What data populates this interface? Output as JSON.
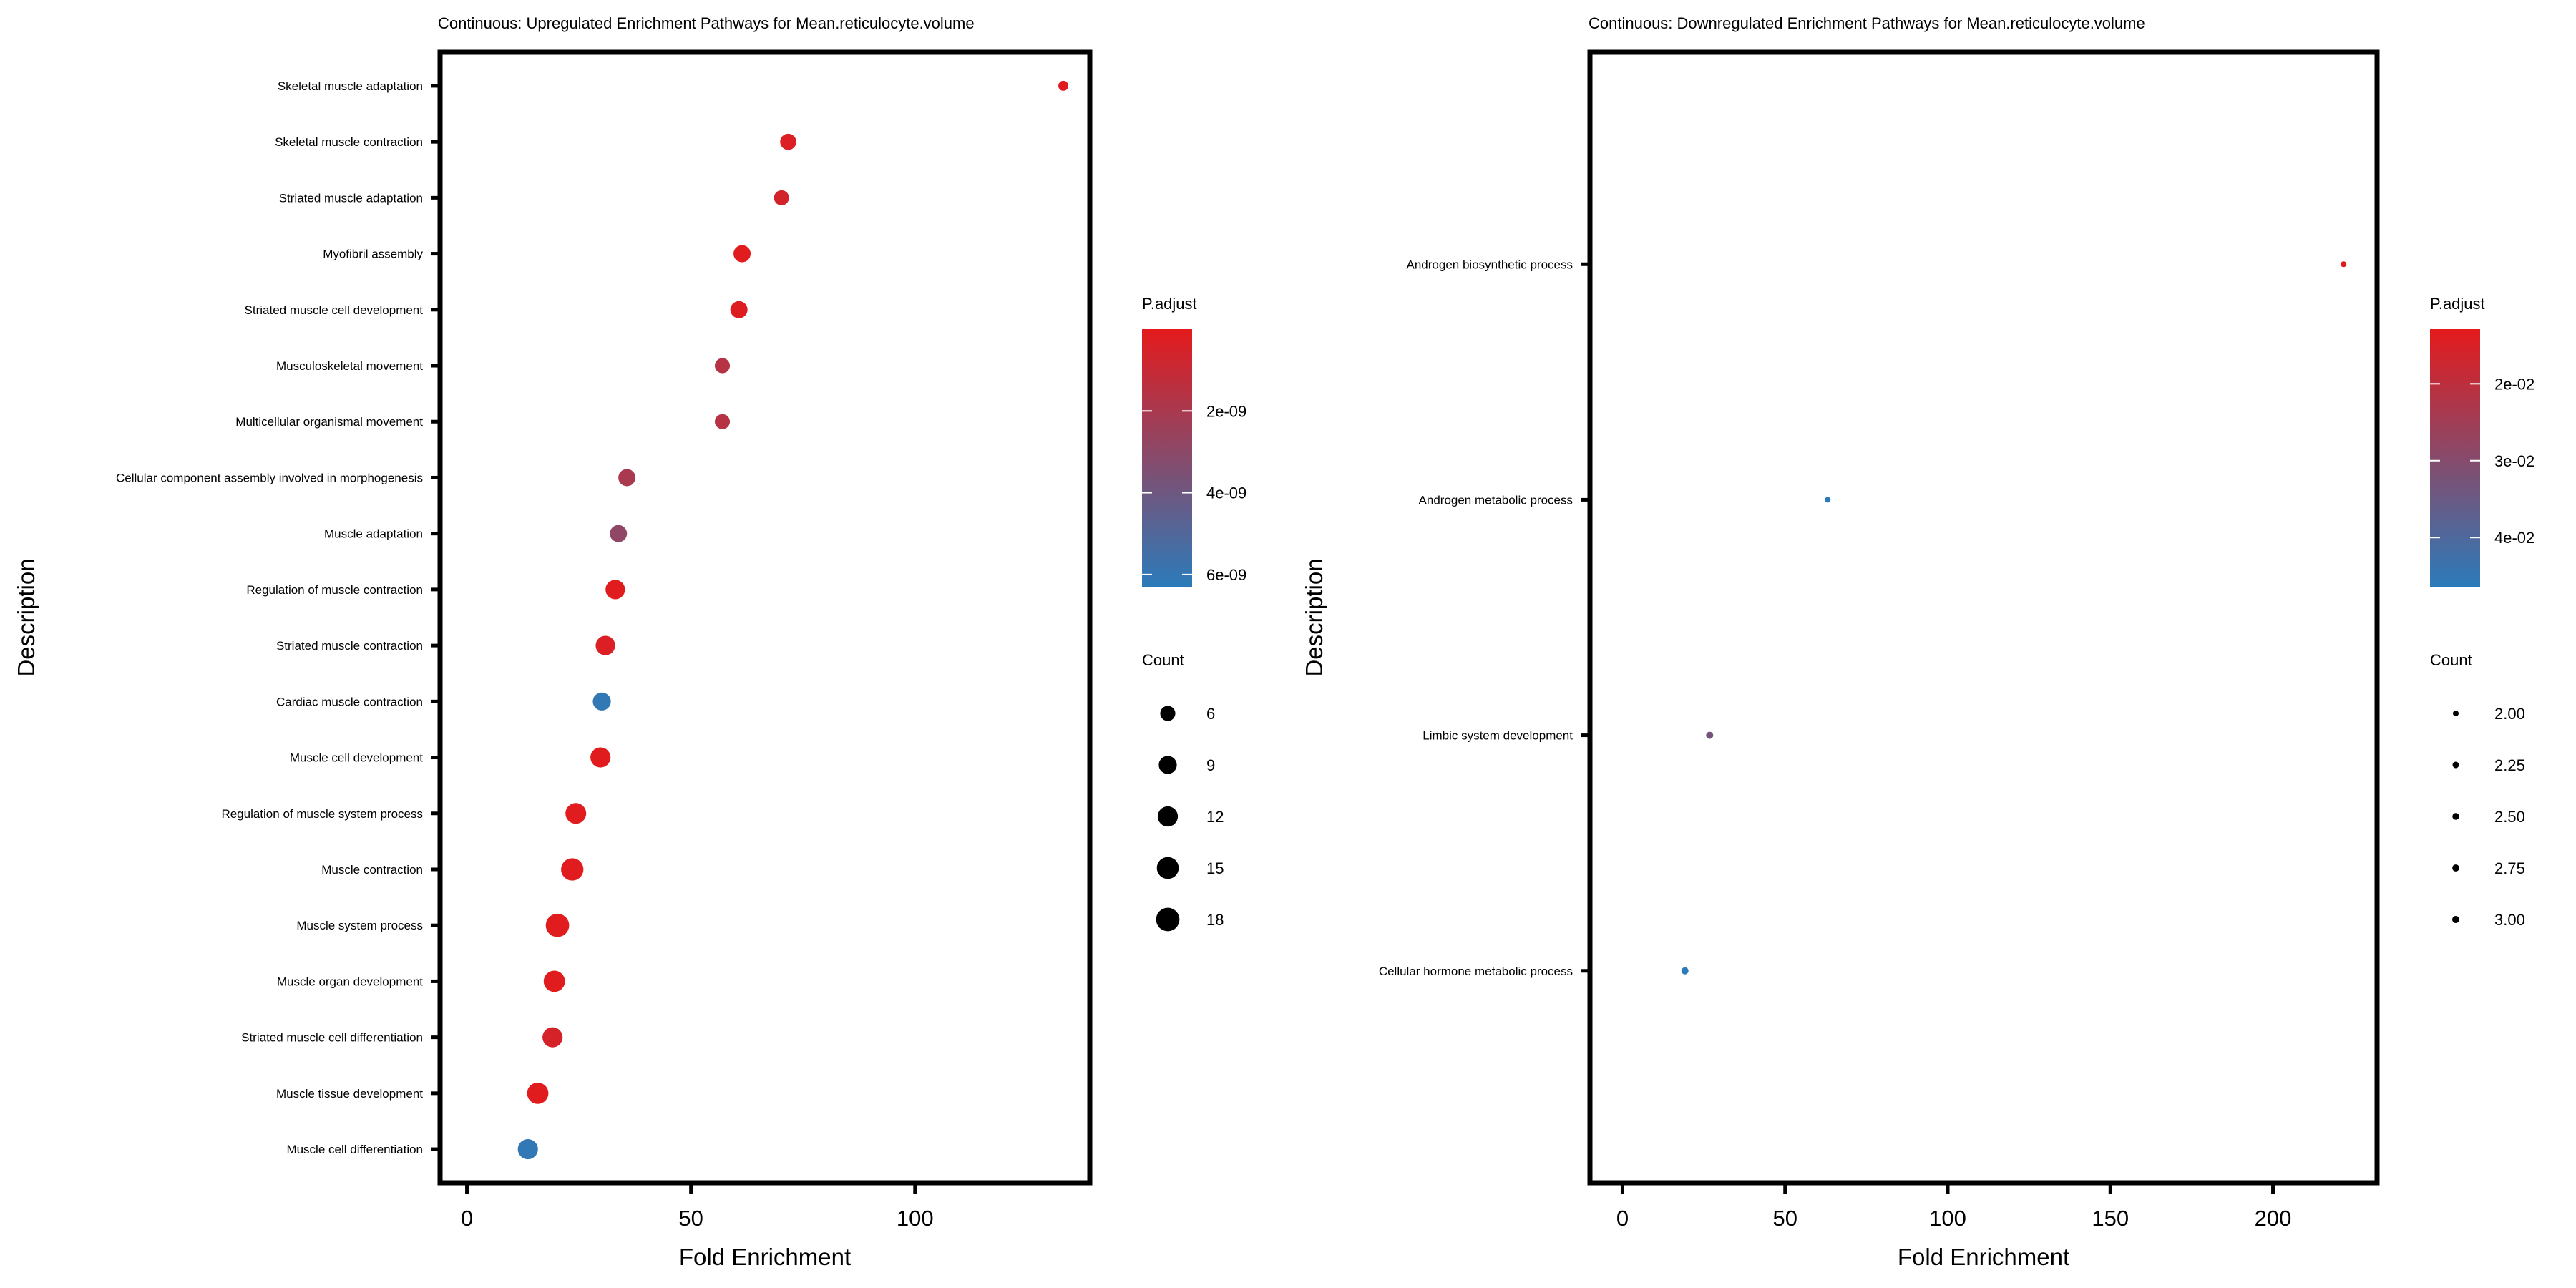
{
  "chart_data": [
    {
      "type": "scatter",
      "title": "Continuous: Upregulated Enrichment Pathways for Mean.reticulocyte.volume",
      "xlabel": "Fold Enrichment",
      "ylabel": "Description",
      "xlim": [
        -6,
        139
      ],
      "xticks": [
        0,
        50,
        100
      ],
      "grid": false,
      "legend_placement": "right",
      "color_legend": {
        "title": "P.adjust",
        "range": [
          0,
          6.3e-09
        ],
        "ticks": [
          {
            "value": 2e-09,
            "label": "2e-09"
          },
          {
            "value": 4e-09,
            "label": "4e-09"
          },
          {
            "value": 6e-09,
            "label": "6e-09"
          }
        ],
        "low_color": "#e41a1c",
        "high_color": "#2b7bba"
      },
      "size_legend": {
        "title": "Count",
        "entries": [
          {
            "value": 6,
            "label": "6"
          },
          {
            "value": 9,
            "label": "9"
          },
          {
            "value": 12,
            "label": "12"
          },
          {
            "value": 15,
            "label": "15"
          },
          {
            "value": 18,
            "label": "18"
          }
        ],
        "range": [
          4,
          20
        ]
      },
      "points": [
        {
          "description": "Skeletal muscle adaptation",
          "fold_enrichment": 133.1,
          "count": 4,
          "p_adjust": 1e-10
        },
        {
          "description": "Skeletal muscle contraction",
          "fold_enrichment": 71.7,
          "count": 7,
          "p_adjust": 3e-10
        },
        {
          "description": "Striated muscle adaptation",
          "fold_enrichment": 70.2,
          "count": 6,
          "p_adjust": 6e-10
        },
        {
          "description": "Myofibril assembly",
          "fold_enrichment": 61.4,
          "count": 8,
          "p_adjust": 1e-10
        },
        {
          "description": "Striated muscle cell development",
          "fold_enrichment": 60.7,
          "count": 8,
          "p_adjust": 2e-10
        },
        {
          "description": "Musculoskeletal movement",
          "fold_enrichment": 57.0,
          "count": 6,
          "p_adjust": 1.6e-09
        },
        {
          "description": "Multicellular organismal movement",
          "fold_enrichment": 57.0,
          "count": 6,
          "p_adjust": 1.6e-09
        },
        {
          "description": "Cellular component assembly involved in morphogenesis",
          "fold_enrichment": 35.7,
          "count": 8,
          "p_adjust": 2e-09
        },
        {
          "description": "Muscle adaptation",
          "fold_enrichment": 33.8,
          "count": 8,
          "p_adjust": 2.9e-09
        },
        {
          "description": "Regulation of muscle contraction",
          "fold_enrichment": 33.1,
          "count": 11,
          "p_adjust": 1e-10
        },
        {
          "description": "Striated muscle contraction",
          "fold_enrichment": 30.9,
          "count": 11,
          "p_adjust": 3e-10
        },
        {
          "description": "Cardiac muscle contraction",
          "fold_enrichment": 30.1,
          "count": 9,
          "p_adjust": 6.1e-09
        },
        {
          "description": "Muscle cell development",
          "fold_enrichment": 29.8,
          "count": 12,
          "p_adjust": 1e-10
        },
        {
          "description": "Regulation of muscle system process",
          "fold_enrichment": 24.3,
          "count": 13,
          "p_adjust": 1e-10
        },
        {
          "description": "Muscle contraction",
          "fold_enrichment": 23.5,
          "count": 16,
          "p_adjust": 1e-10
        },
        {
          "description": "Muscle system process",
          "fold_enrichment": 20.2,
          "count": 18,
          "p_adjust": 1e-10
        },
        {
          "description": "Muscle organ development",
          "fold_enrichment": 19.5,
          "count": 14,
          "p_adjust": 1e-10
        },
        {
          "description": "Striated muscle cell differentiation",
          "fold_enrichment": 19.1,
          "count": 12,
          "p_adjust": 5e-10
        },
        {
          "description": "Muscle tissue development",
          "fold_enrichment": 15.8,
          "count": 14,
          "p_adjust": 1e-10
        },
        {
          "description": "Muscle cell differentiation",
          "fold_enrichment": 13.6,
          "count": 12,
          "p_adjust": 6.1e-09
        }
      ]
    },
    {
      "type": "scatter",
      "title": "Continuous: Downregulated Enrichment Pathways for Mean.reticulocyte.volume",
      "xlabel": "Fold Enrichment",
      "ylabel": "Description",
      "xlim": [
        -10,
        232
      ],
      "xticks": [
        0,
        50,
        100,
        150,
        200
      ],
      "grid": false,
      "legend_placement": "right",
      "color_legend": {
        "title": "P.adjust",
        "range": [
          0.0129,
          0.0464
        ],
        "ticks": [
          {
            "value": 0.02,
            "label": "2e-02"
          },
          {
            "value": 0.03,
            "label": "3e-02"
          },
          {
            "value": 0.04,
            "label": "4e-02"
          }
        ],
        "low_color": "#e41a1c",
        "high_color": "#2b7bba"
      },
      "size_legend": {
        "title": "Count",
        "entries": [
          {
            "value": 2.0,
            "label": "2.00"
          },
          {
            "value": 2.25,
            "label": "2.25"
          },
          {
            "value": 2.5,
            "label": "2.50"
          },
          {
            "value": 2.75,
            "label": "2.75"
          },
          {
            "value": 3.0,
            "label": "3.00"
          }
        ],
        "range": [
          2,
          3
        ]
      },
      "points": [
        {
          "description": "Androgen biosynthetic process",
          "fold_enrichment": 221.7,
          "count": 2,
          "p_adjust": 0.013
        },
        {
          "description": "Androgen metabolic process",
          "fold_enrichment": 63.1,
          "count": 2,
          "p_adjust": 0.046
        },
        {
          "description": "Limbic system development",
          "fold_enrichment": 26.8,
          "count": 3,
          "p_adjust": 0.033
        },
        {
          "description": "Cellular hormone metabolic process",
          "fold_enrichment": 19.2,
          "count": 3,
          "p_adjust": 0.046
        }
      ]
    }
  ]
}
